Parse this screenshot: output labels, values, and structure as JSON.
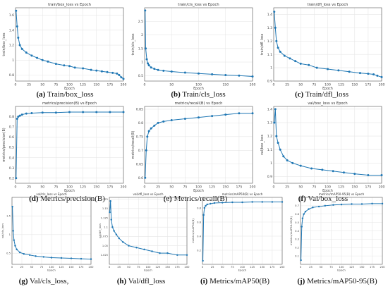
{
  "figure": {
    "colors": {
      "series": "#1f77b4",
      "grid": "#e6e6e6",
      "axis": "#555555"
    }
  },
  "chart_data": [
    {
      "type": "line",
      "title": "train/box_loss vs Epoch",
      "xlabel": "Epoch",
      "ylabel": "train/box_loss",
      "caption_letter": "(a)",
      "caption_text": " Train/box_loss",
      "xlim": [
        0,
        200
      ],
      "ylim": [
        0.72,
        1.7
      ],
      "xticks": [
        0,
        25,
        50,
        75,
        100,
        125,
        150,
        175,
        200
      ],
      "yticks": [
        0.8,
        1.0,
        1.2,
        1.4,
        1.6
      ],
      "grid": true,
      "series": [
        {
          "x": [
            1,
            3,
            5,
            8,
            12,
            20,
            30,
            40,
            50,
            60,
            75,
            90,
            100,
            110,
            125,
            140,
            150,
            160,
            170,
            180,
            188,
            192,
            196,
            200
          ],
          "y": [
            1.66,
            1.45,
            1.3,
            1.2,
            1.15,
            1.1,
            1.06,
            1.03,
            1.0,
            0.98,
            0.95,
            0.93,
            0.92,
            0.9,
            0.89,
            0.87,
            0.86,
            0.85,
            0.84,
            0.83,
            0.82,
            0.8,
            0.77,
            0.75
          ]
        }
      ]
    },
    {
      "type": "line",
      "title": "train/cls_loss vs Epoch",
      "xlabel": "Epoch",
      "ylabel": "train/cls_loss",
      "caption_letter": "(b)",
      "caption_text": " Train/cls_loss",
      "xlim": [
        0,
        200
      ],
      "ylim": [
        0.3,
        3.0
      ],
      "xticks": [
        0,
        50,
        100,
        150,
        200
      ],
      "yticks": [
        0.5,
        1.0,
        1.5,
        2.0,
        2.5
      ],
      "grid": true,
      "series": [
        {
          "x": [
            1,
            2,
            4,
            6,
            8,
            12,
            18,
            25,
            35,
            50,
            75,
            100,
            125,
            150,
            175,
            200
          ],
          "y": [
            2.9,
            1.5,
            1.1,
            0.95,
            0.88,
            0.8,
            0.75,
            0.71,
            0.68,
            0.65,
            0.61,
            0.58,
            0.55,
            0.52,
            0.5,
            0.47
          ]
        }
      ]
    },
    {
      "type": "line",
      "title": "train/dfl_loss vs Epoch",
      "xlabel": "Epoch",
      "ylabel": "train/dfl_loss",
      "caption_letter": "(c)",
      "caption_text": " Train/dfl_loss",
      "xlim": [
        0,
        200
      ],
      "ylim": [
        0.9,
        1.45
      ],
      "xticks": [
        0,
        25,
        50,
        75,
        100,
        125,
        150,
        175,
        200
      ],
      "yticks": [
        0.9,
        1.0,
        1.1,
        1.2,
        1.3,
        1.4
      ],
      "grid": true,
      "series": [
        {
          "x": [
            1,
            3,
            5,
            8,
            12,
            20,
            30,
            40,
            50,
            65,
            80,
            100,
            120,
            140,
            160,
            175,
            185,
            192,
            200
          ],
          "y": [
            1.42,
            1.3,
            1.2,
            1.15,
            1.12,
            1.09,
            1.07,
            1.05,
            1.03,
            1.02,
            1.0,
            0.99,
            0.98,
            0.97,
            0.96,
            0.955,
            0.95,
            0.94,
            0.93
          ]
        }
      ]
    },
    {
      "type": "line",
      "title": "metrics/precision(B) vs Epoch",
      "xlabel": "Epoch",
      "ylabel": "metrics/precision(B)",
      "caption_letter": "(d)",
      "caption_text": " Metrics/precision(B)",
      "xlim": [
        0,
        200
      ],
      "ylim": [
        0.15,
        0.9
      ],
      "xticks": [
        0,
        25,
        50,
        75,
        100,
        125,
        150,
        175,
        200
      ],
      "yticks": [
        0.2,
        0.3,
        0.4,
        0.5,
        0.6,
        0.7,
        0.8
      ],
      "grid": true,
      "series": [
        {
          "x": [
            1,
            3,
            5,
            8,
            12,
            20,
            30,
            50,
            75,
            100,
            125,
            150,
            175,
            200
          ],
          "y": [
            0.2,
            0.78,
            0.8,
            0.81,
            0.82,
            0.83,
            0.835,
            0.84,
            0.84,
            0.845,
            0.845,
            0.845,
            0.845,
            0.845
          ]
        }
      ]
    },
    {
      "type": "line",
      "title": "metrics/recall(B) vs Epoch",
      "xlabel": "Epoch",
      "ylabel": "metrics/recall(B)",
      "caption_letter": "(e)",
      "caption_text": " Metrics/recall(B)",
      "xlim": [
        0,
        200
      ],
      "ylim": [
        0.58,
        0.86
      ],
      "xticks": [
        0,
        25,
        50,
        75,
        100,
        125,
        150,
        175,
        200
      ],
      "yticks": [
        0.6,
        0.65,
        0.7,
        0.75,
        0.8,
        0.85
      ],
      "grid": true,
      "series": [
        {
          "x": [
            1,
            3,
            5,
            8,
            12,
            18,
            25,
            35,
            50,
            75,
            100,
            125,
            150,
            175,
            200
          ],
          "y": [
            0.6,
            0.7,
            0.75,
            0.77,
            0.78,
            0.79,
            0.8,
            0.805,
            0.81,
            0.815,
            0.82,
            0.825,
            0.83,
            0.835,
            0.835
          ]
        }
      ]
    },
    {
      "type": "line",
      "title": "val/box_loss vs Epoch",
      "xlabel": "Epoch",
      "ylabel": "val/box_loss",
      "caption_letter": "(f)",
      "caption_text": " Val/box_loss",
      "xlim": [
        0,
        200
      ],
      "ylim": [
        0.85,
        1.42
      ],
      "xticks": [
        0,
        25,
        50,
        75,
        100,
        125,
        150,
        175,
        200
      ],
      "yticks": [
        0.9,
        1.0,
        1.1,
        1.2,
        1.3,
        1.4
      ],
      "grid": true,
      "series": [
        {
          "x": [
            1,
            3,
            5,
            8,
            12,
            18,
            25,
            35,
            50,
            70,
            90,
            110,
            130,
            150,
            175,
            200
          ],
          "y": [
            1.3,
            1.4,
            1.2,
            1.15,
            1.1,
            1.05,
            1.02,
            1.0,
            0.98,
            0.96,
            0.95,
            0.94,
            0.93,
            0.92,
            0.91,
            0.91
          ]
        }
      ]
    },
    {
      "type": "line",
      "title": "val/cls_loss vs Epoch",
      "xlabel": "Epoch",
      "ylabel": "val/cls_loss",
      "caption_letter": "(g)",
      "caption_text": " Val/cls_loss,",
      "xlim": [
        0,
        200
      ],
      "ylim": [
        0.2,
        2.0
      ],
      "xticks": [
        0,
        25,
        50,
        75,
        100,
        125,
        150,
        175,
        200
      ],
      "yticks": [
        0.5,
        1.0,
        1.5
      ],
      "grid": true,
      "series": [
        {
          "x": [
            1,
            3,
            5,
            8,
            12,
            20,
            30,
            45,
            60,
            80,
            100,
            125,
            150,
            175,
            200
          ],
          "y": [
            1.75,
            1.1,
            0.85,
            0.7,
            0.6,
            0.52,
            0.48,
            0.45,
            0.42,
            0.4,
            0.38,
            0.37,
            0.36,
            0.35,
            0.34
          ]
        }
      ]
    },
    {
      "type": "line",
      "title": "val/dfl_loss vs Epoch",
      "xlabel": "Epoch",
      "ylabel": "val/dfl_loss",
      "caption_letter": "(h)",
      "caption_text": " Val/dfl_loss",
      "xlim": [
        0,
        200
      ],
      "ylim": [
        1.0,
        1.18
      ],
      "xticks": [
        0,
        25,
        50,
        75,
        100,
        125,
        150,
        175,
        200
      ],
      "yticks": [
        1.025,
        1.05,
        1.075,
        1.1,
        1.125,
        1.15,
        1.175
      ],
      "grid": true,
      "series": [
        {
          "x": [
            1,
            3,
            5,
            8,
            12,
            18,
            25,
            35,
            50,
            70,
            90,
            110,
            130,
            150,
            175,
            200
          ],
          "y": [
            1.14,
            1.17,
            1.12,
            1.1,
            1.09,
            1.08,
            1.07,
            1.06,
            1.05,
            1.045,
            1.04,
            1.035,
            1.03,
            1.03,
            1.025,
            1.025
          ]
        }
      ]
    },
    {
      "type": "line",
      "title": "metrics/mAP50(B) vs Epoch",
      "xlabel": "Epoch",
      "ylabel": "metrics/mAP50(B)",
      "caption_letter": "(i)",
      "caption_text": " Metrics/mAP50(B)",
      "xlim": [
        0,
        200
      ],
      "ylim": [
        0.0,
        0.95
      ],
      "xticks": [
        0,
        25,
        50,
        75,
        100,
        125,
        150,
        175,
        200
      ],
      "yticks": [
        0.2,
        0.4,
        0.6,
        0.8
      ],
      "grid": true,
      "series": [
        {
          "x": [
            1,
            3,
            5,
            8,
            12,
            20,
            30,
            50,
            75,
            100,
            125,
            150,
            175,
            200
          ],
          "y": [
            0.05,
            0.7,
            0.8,
            0.83,
            0.85,
            0.86,
            0.87,
            0.875,
            0.88,
            0.88,
            0.885,
            0.885,
            0.885,
            0.885
          ]
        }
      ]
    },
    {
      "type": "line",
      "title": "metrics/mAP50-95(B) vs Epoch",
      "xlabel": "Epoch",
      "ylabel": "metrics/mAP50-95(B)",
      "caption_letter": "(j)",
      "caption_text": " Metrics/mAP50-95(B)",
      "xlim": [
        0,
        200
      ],
      "ylim": [
        0.0,
        0.8
      ],
      "xticks": [
        0,
        25,
        50,
        75,
        100,
        125,
        150,
        175,
        200
      ],
      "yticks": [
        0.1,
        0.2,
        0.3,
        0.4,
        0.5,
        0.6,
        0.7
      ],
      "grid": true,
      "series": [
        {
          "x": [
            1,
            3,
            5,
            8,
            12,
            20,
            30,
            45,
            60,
            80,
            100,
            125,
            150,
            175,
            200
          ],
          "y": [
            0.05,
            0.45,
            0.55,
            0.6,
            0.63,
            0.66,
            0.68,
            0.69,
            0.7,
            0.71,
            0.715,
            0.72,
            0.72,
            0.725,
            0.725
          ]
        }
      ]
    }
  ]
}
